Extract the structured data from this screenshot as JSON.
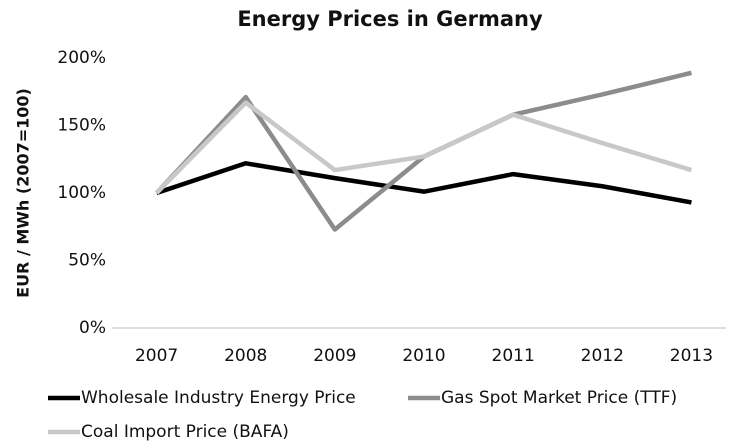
{
  "chart_data": {
    "type": "line",
    "title": "Energy Prices in Germany",
    "y_label": "EUR / MWh (2007=100)",
    "categories": [
      "2007",
      "2008",
      "2009",
      "2010",
      "2011",
      "2012",
      "2013"
    ],
    "series": [
      {
        "name": "Wholesale Industry Energy Price",
        "color": "#000000",
        "values": [
          100,
          122,
          111,
          101,
          114,
          105,
          93
        ]
      },
      {
        "name": "Gas Spot Market Price (TTF)",
        "color": "#8c8c8c",
        "values": [
          100,
          171,
          73,
          127,
          158,
          173,
          189
        ]
      },
      {
        "name": "Coal Import Price (BAFA)",
        "color": "#c8c8c8",
        "values": [
          100,
          167,
          117,
          127,
          158,
          137,
          117
        ]
      }
    ],
    "ylim": [
      0,
      200
    ],
    "yticks": [
      {
        "value": 0,
        "label": "0%"
      },
      {
        "value": 50,
        "label": "50%"
      },
      {
        "value": 100,
        "label": "100%"
      },
      {
        "value": 150,
        "label": "150%"
      },
      {
        "value": 200,
        "label": "200%"
      }
    ],
    "grid": false,
    "legend": "bottom"
  }
}
